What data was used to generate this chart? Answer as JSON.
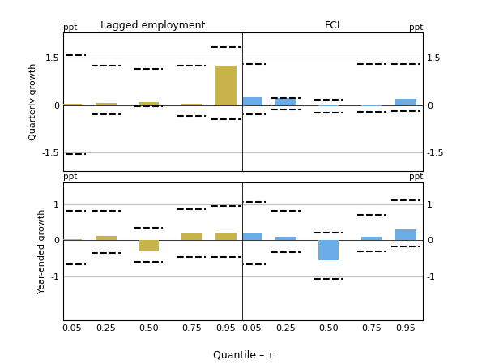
{
  "quantiles": [
    0.05,
    0.25,
    0.5,
    0.75,
    0.95
  ],
  "top_left": {
    "bars": [
      0.03,
      0.07,
      0.08,
      0.05,
      1.25
    ],
    "ci_upper": [
      1.6,
      1.25,
      1.15,
      1.25,
      1.85
    ],
    "ci_lower": [
      -1.55,
      -0.3,
      -0.05,
      -0.35,
      -0.45
    ],
    "color": "#c8b44a",
    "ylim": [
      -2.1,
      2.3
    ],
    "yticks": [
      -1.5,
      0.0,
      1.5
    ],
    "ylabel": "Quarterly growth",
    "title": "Lagged employment"
  },
  "top_right": {
    "bars": [
      0.25,
      0.22,
      -0.03,
      -0.05,
      0.2
    ],
    "ci_upper": [
      1.3,
      0.22,
      0.17,
      1.3,
      1.3
    ],
    "ci_lower": [
      -0.3,
      -0.15,
      -0.25,
      -0.22,
      -0.18
    ],
    "color": "#6aace6",
    "ylim": [
      -2.1,
      2.3
    ],
    "yticks": [
      -1.5,
      0.0,
      1.5
    ],
    "title": "FCI"
  },
  "bottom_left": {
    "bars": [
      0.02,
      0.12,
      -0.3,
      0.18,
      0.2
    ],
    "ci_upper": [
      0.8,
      0.8,
      0.35,
      0.85,
      0.95
    ],
    "ci_lower": [
      -0.65,
      -0.35,
      -0.6,
      -0.45,
      -0.45
    ],
    "color": "#c8b44a",
    "ylim": [
      -2.2,
      1.6
    ],
    "yticks": [
      -1.0,
      0.0,
      1.0
    ],
    "ylabel": "Year-ended growth"
  },
  "bottom_right": {
    "bars": [
      0.18,
      0.1,
      -0.55,
      0.1,
      0.3
    ],
    "ci_upper": [
      1.05,
      0.8,
      0.2,
      0.7,
      1.1
    ],
    "ci_lower": [
      -0.65,
      -0.32,
      -1.05,
      -0.3,
      -0.18
    ],
    "color": "#6aace6",
    "ylim": [
      -2.2,
      1.6
    ],
    "yticks": [
      -1.0,
      0.0,
      1.0
    ]
  },
  "bar_width": 0.12,
  "xlabel": "Quantile – τ",
  "ppt_label": "ppt",
  "background_color": "#ffffff",
  "grid_color": "#c0c0c0",
  "ci_color": "black"
}
